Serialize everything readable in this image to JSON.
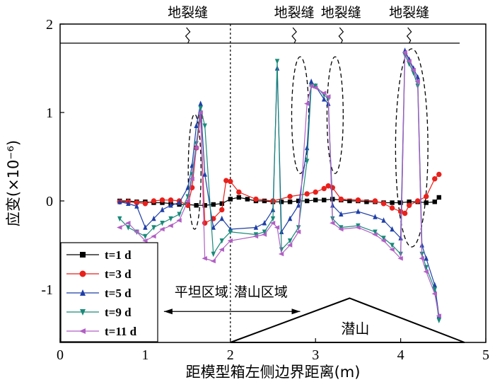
{
  "chart_data": {
    "type": "line",
    "title": "",
    "xlabel": "距模型箱左侧边界距离(m)",
    "ylabel": "应变(×10⁻⁶)",
    "xlim": [
      0,
      5
    ],
    "ylim": [
      -1.6,
      2.0
    ],
    "x_ticks": [
      0,
      1,
      2,
      3,
      4,
      5
    ],
    "y_ticks": [
      -1,
      0,
      1,
      2
    ],
    "grid": false,
    "legend_position": "bottom-left",
    "series": [
      {
        "name": "t=1 d",
        "color": "#000000",
        "marker": "square",
        "x": [
          0.7,
          0.8,
          0.9,
          1.0,
          1.1,
          1.2,
          1.3,
          1.4,
          1.5,
          1.6,
          1.7,
          1.8,
          1.9,
          2.0,
          2.1,
          2.2,
          2.3,
          2.4,
          2.5,
          2.6,
          2.7,
          2.8,
          2.9,
          3.0,
          3.1,
          3.2,
          3.3,
          3.4,
          3.5,
          3.6,
          3.7,
          3.8,
          3.9,
          4.0,
          4.1,
          4.2,
          4.3,
          4.4,
          4.45
        ],
        "y": [
          0.0,
          0.0,
          -0.01,
          -0.01,
          -0.02,
          -0.02,
          -0.03,
          -0.04,
          -0.04,
          -0.05,
          -0.05,
          -0.04,
          -0.03,
          0.02,
          0.04,
          0.02,
          0.0,
          0.0,
          -0.01,
          -0.01,
          -0.01,
          0.0,
          0.0,
          0.01,
          0.01,
          0.02,
          0.01,
          0.0,
          0.0,
          -0.01,
          -0.01,
          -0.02,
          -0.02,
          -0.02,
          -0.01,
          -0.01,
          -0.02,
          -0.01,
          0.04
        ]
      },
      {
        "name": "t=3 d",
        "color": "#e8211c",
        "marker": "circle",
        "x": [
          0.7,
          0.8,
          0.9,
          1.0,
          1.1,
          1.2,
          1.3,
          1.4,
          1.5,
          1.55,
          1.6,
          1.65,
          1.7,
          1.8,
          1.9,
          1.95,
          2.0,
          2.1,
          2.3,
          2.5,
          2.7,
          2.9,
          3.0,
          3.1,
          3.15,
          3.2,
          3.3,
          3.5,
          3.7,
          3.8,
          3.9,
          4.0,
          4.05,
          4.1,
          4.2,
          4.3,
          4.4,
          4.45
        ],
        "y": [
          -0.01,
          -0.01,
          -0.02,
          -0.03,
          0.0,
          0.01,
          0.01,
          0.0,
          -0.05,
          0.15,
          0.6,
          0.95,
          -0.25,
          -0.2,
          -0.1,
          0.23,
          0.22,
          0.1,
          0.02,
          0.0,
          0.05,
          0.08,
          0.1,
          0.14,
          0.17,
          0.15,
          0.02,
          0.01,
          0.0,
          -0.03,
          -0.08,
          -0.12,
          -0.14,
          -0.05,
          0.0,
          0.05,
          0.25,
          0.3
        ]
      },
      {
        "name": "t=5 d",
        "color": "#1f3fa8",
        "marker": "triangle-up",
        "x": [
          0.7,
          0.8,
          0.9,
          1.0,
          1.1,
          1.2,
          1.3,
          1.4,
          1.5,
          1.55,
          1.6,
          1.65,
          1.7,
          1.8,
          1.9,
          2.0,
          2.3,
          2.4,
          2.5,
          2.55,
          2.6,
          2.7,
          2.8,
          2.9,
          2.95,
          3.0,
          3.1,
          3.15,
          3.2,
          3.3,
          3.5,
          3.7,
          3.8,
          3.9,
          4.0,
          4.05,
          4.1,
          4.15,
          4.2,
          4.25,
          4.3,
          4.4,
          4.45
        ],
        "y": [
          -0.01,
          -0.03,
          -0.06,
          -0.3,
          -0.2,
          -0.1,
          -0.05,
          -0.02,
          0.15,
          0.4,
          0.85,
          1.1,
          0.3,
          -0.3,
          -0.2,
          -0.32,
          -0.3,
          -0.25,
          -0.1,
          1.5,
          -0.35,
          -0.2,
          -0.05,
          0.6,
          1.35,
          1.3,
          1.15,
          1.1,
          -0.05,
          -0.15,
          -0.12,
          -0.18,
          -0.22,
          -0.32,
          -0.42,
          1.7,
          1.6,
          1.5,
          1.4,
          -0.5,
          -0.65,
          -0.95,
          -1.3
        ]
      },
      {
        "name": "t=9 d",
        "color": "#1a8a7a",
        "marker": "triangle-down",
        "x": [
          0.7,
          0.8,
          0.9,
          1.0,
          1.1,
          1.2,
          1.3,
          1.4,
          1.5,
          1.55,
          1.6,
          1.65,
          1.7,
          1.8,
          1.9,
          2.0,
          2.3,
          2.4,
          2.5,
          2.55,
          2.6,
          2.7,
          2.8,
          2.9,
          2.95,
          3.0,
          3.1,
          3.15,
          3.2,
          3.3,
          3.5,
          3.7,
          3.8,
          3.9,
          4.0,
          4.05,
          4.1,
          4.15,
          4.2,
          4.25,
          4.3,
          4.4,
          4.45
        ],
        "y": [
          -0.2,
          -0.3,
          -0.35,
          -0.4,
          -0.3,
          -0.25,
          -0.2,
          -0.15,
          0.05,
          0.3,
          0.65,
          1.05,
          0.85,
          -0.6,
          -0.45,
          -0.35,
          -0.38,
          -0.35,
          -0.2,
          1.58,
          -0.55,
          -0.45,
          -0.3,
          0.45,
          1.3,
          1.3,
          1.2,
          1.15,
          -0.2,
          -0.3,
          -0.28,
          -0.35,
          -0.42,
          -0.5,
          -0.6,
          1.65,
          1.55,
          1.45,
          1.3,
          -0.6,
          -0.75,
          -1.0,
          -1.35
        ]
      },
      {
        "name": "t=11 d",
        "color": "#b15fc4",
        "marker": "triangle-left",
        "x": [
          0.7,
          0.8,
          0.9,
          1.0,
          1.1,
          1.2,
          1.3,
          1.4,
          1.5,
          1.55,
          1.6,
          1.65,
          1.7,
          1.8,
          1.9,
          2.0,
          2.3,
          2.4,
          2.5,
          2.55,
          2.6,
          2.7,
          2.8,
          2.9,
          2.95,
          3.0,
          3.1,
          3.15,
          3.2,
          3.3,
          3.5,
          3.7,
          3.8,
          3.9,
          4.0,
          4.05,
          4.1,
          4.15,
          4.2,
          4.25,
          4.3,
          4.4,
          4.45
        ],
        "y": [
          -0.3,
          -0.25,
          -0.35,
          -0.45,
          -0.4,
          -0.32,
          -0.28,
          -0.22,
          0.0,
          0.25,
          0.6,
          1.0,
          -0.65,
          -0.68,
          -0.55,
          -0.45,
          -0.4,
          -0.38,
          -0.25,
          -0.3,
          -0.6,
          -0.5,
          -0.35,
          1.1,
          1.3,
          1.28,
          1.22,
          1.18,
          -0.25,
          -0.32,
          -0.3,
          -0.38,
          -0.45,
          -0.55,
          -0.65,
          1.68,
          1.58,
          1.48,
          1.35,
          -0.65,
          -0.8,
          -1.05,
          -1.3
        ]
      }
    ],
    "annotations": {
      "crack_label": "地裂缝",
      "crack_positions_x": [
        1.5,
        2.75,
        3.3,
        4.1
      ],
      "divider_x": 2.0,
      "flat_region_label": "平坦区域",
      "buried_hill_region_label": "潜山区域",
      "hill_label": "潜山",
      "hill_vertices": [
        [
          2.0,
          -1.6
        ],
        [
          3.4,
          -1.1
        ],
        [
          4.75,
          -1.6
        ]
      ]
    }
  }
}
